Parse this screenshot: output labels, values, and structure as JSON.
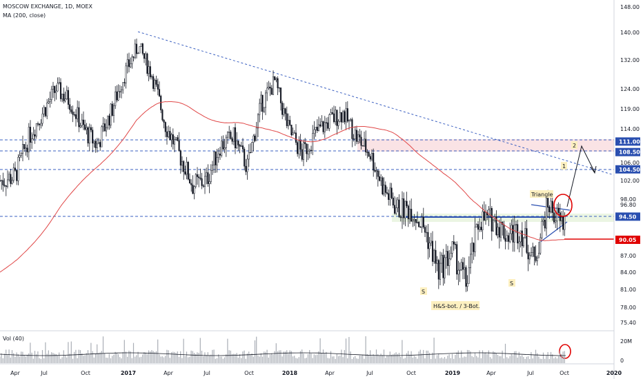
{
  "header": {
    "title": "MOSCOW EXCHANGE, 1D, MOEX",
    "indicator": "MA (200, close)"
  },
  "volume_label": "Vol (40)",
  "colors": {
    "candle": "#131722",
    "ma": "#e04646",
    "trend": "#3a5fc0",
    "level_line": "#2a4fb0",
    "support": "#e00000",
    "resistance_zone": "#f8d7da",
    "support_zone": "#e6f2dc",
    "label_blue": "#2a4fb0",
    "label_red": "#e00000",
    "annotation_bg": "#fdf0c0",
    "circle": "#e00000",
    "volume": "#a9adb5"
  },
  "chart_data": {
    "type": "candlestick",
    "y_axis_ticks": [
      "148.00",
      "140.00",
      "132.00",
      "124.00",
      "119.00",
      "114.00",
      "106.00",
      "102.00",
      "98.00",
      "96.80",
      "87.00",
      "84.00",
      "81.00",
      "78.00",
      "75.40"
    ],
    "x_axis_ticks": [
      "Apr",
      "Jul",
      "Oct",
      "2017",
      "Apr",
      "Jul",
      "Oct",
      "2018",
      "Apr",
      "Jul",
      "Oct",
      "2019",
      "Apr",
      "Jul",
      "Oct",
      "2020"
    ],
    "price_labels": [
      {
        "value": "111.00",
        "color": "blue"
      },
      {
        "value": "108.50",
        "color": "blue"
      },
      {
        "value": "104.50",
        "color": "blue"
      },
      {
        "value": "94.50",
        "color": "blue"
      },
      {
        "value": "90.05",
        "color": "red"
      }
    ],
    "horizontal_levels": [
      111.0,
      108.5,
      104.5,
      94.5,
      90.05
    ],
    "annotations": [
      "S",
      "S",
      "H&S-bot. / 3-Bot.",
      "Triangle",
      "1",
      "2"
    ],
    "volume_axis_ticks": [
      "20M",
      "0"
    ],
    "close_path": [
      [
        "2016-03",
        102
      ],
      [
        "2016-04",
        103
      ],
      [
        "2016-05",
        112
      ],
      [
        "2016-06",
        118
      ],
      [
        "2016-07",
        124
      ],
      [
        "2016-08",
        121
      ],
      [
        "2016-09",
        114
      ],
      [
        "2016-10",
        110
      ],
      [
        "2016-11",
        118
      ],
      [
        "2016-12",
        128
      ],
      [
        "2017-01",
        136
      ],
      [
        "2017-02",
        128
      ],
      [
        "2017-03",
        115
      ],
      [
        "2017-04",
        108
      ],
      [
        "2017-05",
        101
      ],
      [
        "2017-06",
        102
      ],
      [
        "2017-07",
        110
      ],
      [
        "2017-08",
        112
      ],
      [
        "2017-09",
        105
      ],
      [
        "2017-10",
        120
      ],
      [
        "2017-11",
        126
      ],
      [
        "2017-12",
        114
      ],
      [
        "2018-01",
        108
      ],
      [
        "2018-02",
        113
      ],
      [
        "2018-03",
        116
      ],
      [
        "2018-04",
        118
      ],
      [
        "2018-05",
        112
      ],
      [
        "2018-06",
        108
      ],
      [
        "2018-07",
        100
      ],
      [
        "2018-08",
        96
      ],
      [
        "2018-09",
        96
      ],
      [
        "2018-10",
        92
      ],
      [
        "2018-11",
        84
      ],
      [
        "2018-12",
        88
      ],
      [
        "2019-01",
        82
      ],
      [
        "2019-02",
        94
      ],
      [
        "2019-03",
        94
      ],
      [
        "2019-04",
        91
      ],
      [
        "2019-05",
        92
      ],
      [
        "2019-06",
        86
      ],
      [
        "2019-07",
        97
      ],
      [
        "2019-08",
        93
      ],
      [
        "2019-09",
        96
      ]
    ]
  }
}
